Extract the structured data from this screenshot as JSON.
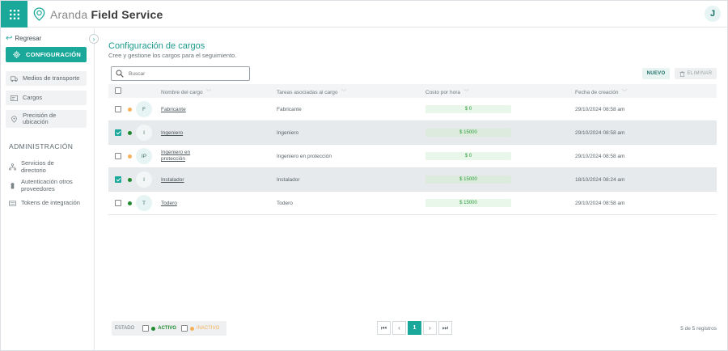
{
  "app": {
    "brand_light": "Aranda",
    "brand_bold": "Field Service",
    "user_initial": "J",
    "accent_color": "#1aa89a"
  },
  "sidebar": {
    "back_label": "Regresar",
    "config_label": "CONFIGURACIÓN",
    "items": [
      {
        "label": "Medios de transporte",
        "icon": "transport-icon"
      },
      {
        "label": "Cargos",
        "icon": "badge-icon"
      },
      {
        "label": "Precisión de ubicación",
        "icon": "location-pin-icon"
      }
    ],
    "admin_title": "ADMINISTRACIÓN",
    "admin_items": [
      {
        "label": "Servicios de directorio",
        "icon": "directory-icon"
      },
      {
        "label": "Autenticación otros proveedores",
        "icon": "lock-icon"
      },
      {
        "label": "Tokens de integración",
        "icon": "token-icon"
      }
    ]
  },
  "main": {
    "title": "Configuración de cargos",
    "subtitle": "Cree y gestione los cargos para el seguimiento.",
    "search_placeholder": "Buscar",
    "new_label": "NUEVO",
    "delete_label": "ELIMINAR"
  },
  "table": {
    "headers": [
      "Nombre del cargo",
      "Tareas asociadas al cargo",
      "Costo por hora",
      "Fecha de creación"
    ],
    "rows": [
      {
        "initial": "F",
        "name": "Fabricante",
        "tasks": "Fabricante",
        "cost": "$ 0",
        "date": "29/10/2024 08:58 am",
        "status": "inactivo",
        "selected": false
      },
      {
        "initial": "I",
        "name": "Ingeniero",
        "tasks": "Ingeniero",
        "cost": "$ 15000",
        "date": "29/10/2024 08:58 am",
        "status": "activo",
        "selected": true
      },
      {
        "initial": "IP",
        "name": "Ingeniero en protección",
        "tasks": "Ingeniero en protección",
        "cost": "$ 0",
        "date": "29/10/2024 08:58 am",
        "status": "inactivo",
        "selected": false
      },
      {
        "initial": "I",
        "name": "Instalador",
        "tasks": "Instalador",
        "cost": "$ 15000",
        "date": "18/10/2024 08:24 am",
        "status": "activo",
        "selected": true
      },
      {
        "initial": "T",
        "name": "Todero",
        "tasks": "Todero",
        "cost": "$ 15000",
        "date": "29/10/2024 08:58 am",
        "status": "activo",
        "selected": false
      }
    ]
  },
  "footer": {
    "estado_label": "ESTADO",
    "active_label": "ACTIVO",
    "inactive_label": "INACTIVO",
    "active_color": "#1f8a2e",
    "inactive_color": "#f5b05a",
    "current_page": "1",
    "records": "5 de 5 registros"
  }
}
